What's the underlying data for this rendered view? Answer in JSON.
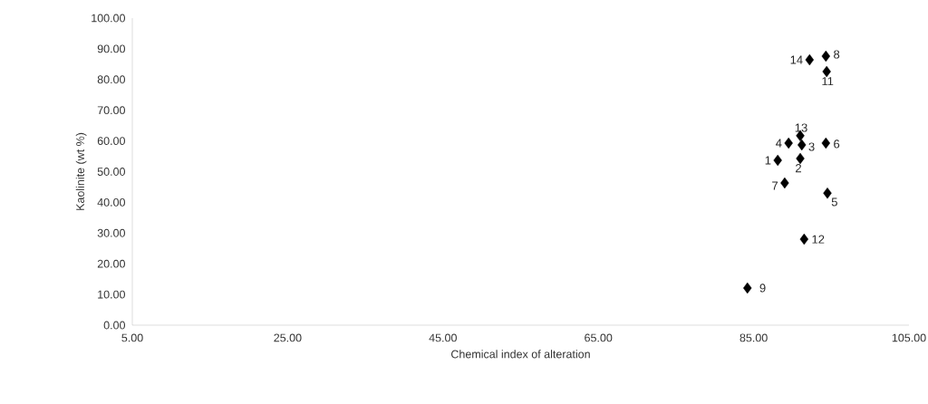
{
  "chart_data": {
    "type": "scatter",
    "xlabel": "Chemical index of alteration",
    "ylabel": "Kaolinite  (wt %)",
    "x": [
      88.1,
      91.0,
      91.2,
      89.5,
      94.5,
      94.3,
      89.0,
      94.3,
      84.2,
      94.4,
      91.5,
      91.0,
      92.2
    ],
    "values": [
      53.7,
      54.3,
      58.7,
      59.3,
      43.0,
      59.3,
      46.3,
      87.6,
      12.1,
      82.6,
      28.0,
      61.7,
      86.4
    ],
    "color": "#000000",
    "marker": "diamond",
    "grid": false,
    "xlim": [
      5,
      105
    ],
    "ylim": [
      0,
      100
    ],
    "xticks": [
      {
        "value": 5,
        "label": "5.00"
      },
      {
        "value": 25,
        "label": "25.00"
      },
      {
        "value": 45,
        "label": "45.00"
      },
      {
        "value": 65,
        "label": "65.00"
      },
      {
        "value": 85,
        "label": "85.00"
      },
      {
        "value": 105,
        "label": "105.00"
      }
    ],
    "yticks": [
      {
        "value": 0,
        "label": "0.00"
      },
      {
        "value": 10,
        "label": "10.00"
      },
      {
        "value": 20,
        "label": "20.00"
      },
      {
        "value": 30,
        "label": "30.00"
      },
      {
        "value": 40,
        "label": "40.00"
      },
      {
        "value": 50,
        "label": "50.00"
      },
      {
        "value": 60,
        "label": "60.00"
      },
      {
        "value": 70,
        "label": "70.00"
      },
      {
        "value": 80,
        "label": "80.00"
      },
      {
        "value": 90,
        "label": "90.00"
      },
      {
        "value": 100,
        "label": "100.00"
      }
    ],
    "annotations": [
      {
        "text": "1",
        "x": 88.1,
        "y": 53.7
      },
      {
        "text": "2",
        "x": 91.0,
        "y": 54.3
      },
      {
        "text": "3",
        "x": 91.2,
        "y": 58.7
      },
      {
        "text": "4",
        "x": 89.5,
        "y": 59.3
      },
      {
        "text": "5",
        "x": 94.5,
        "y": 43.0
      },
      {
        "text": "6",
        "x": 94.3,
        "y": 59.3
      },
      {
        "text": "7",
        "x": 89.0,
        "y": 46.3
      },
      {
        "text": "8",
        "x": 94.3,
        "y": 87.6
      },
      {
        "text": "9",
        "x": 84.2,
        "y": 12.1
      },
      {
        "text": "11",
        "x": 94.4,
        "y": 82.6
      },
      {
        "text": "12",
        "x": 91.5,
        "y": 28.0
      },
      {
        "text": "13",
        "x": 91.0,
        "y": 61.7
      },
      {
        "text": "14",
        "x": 92.2,
        "y": 86.4
      }
    ]
  }
}
